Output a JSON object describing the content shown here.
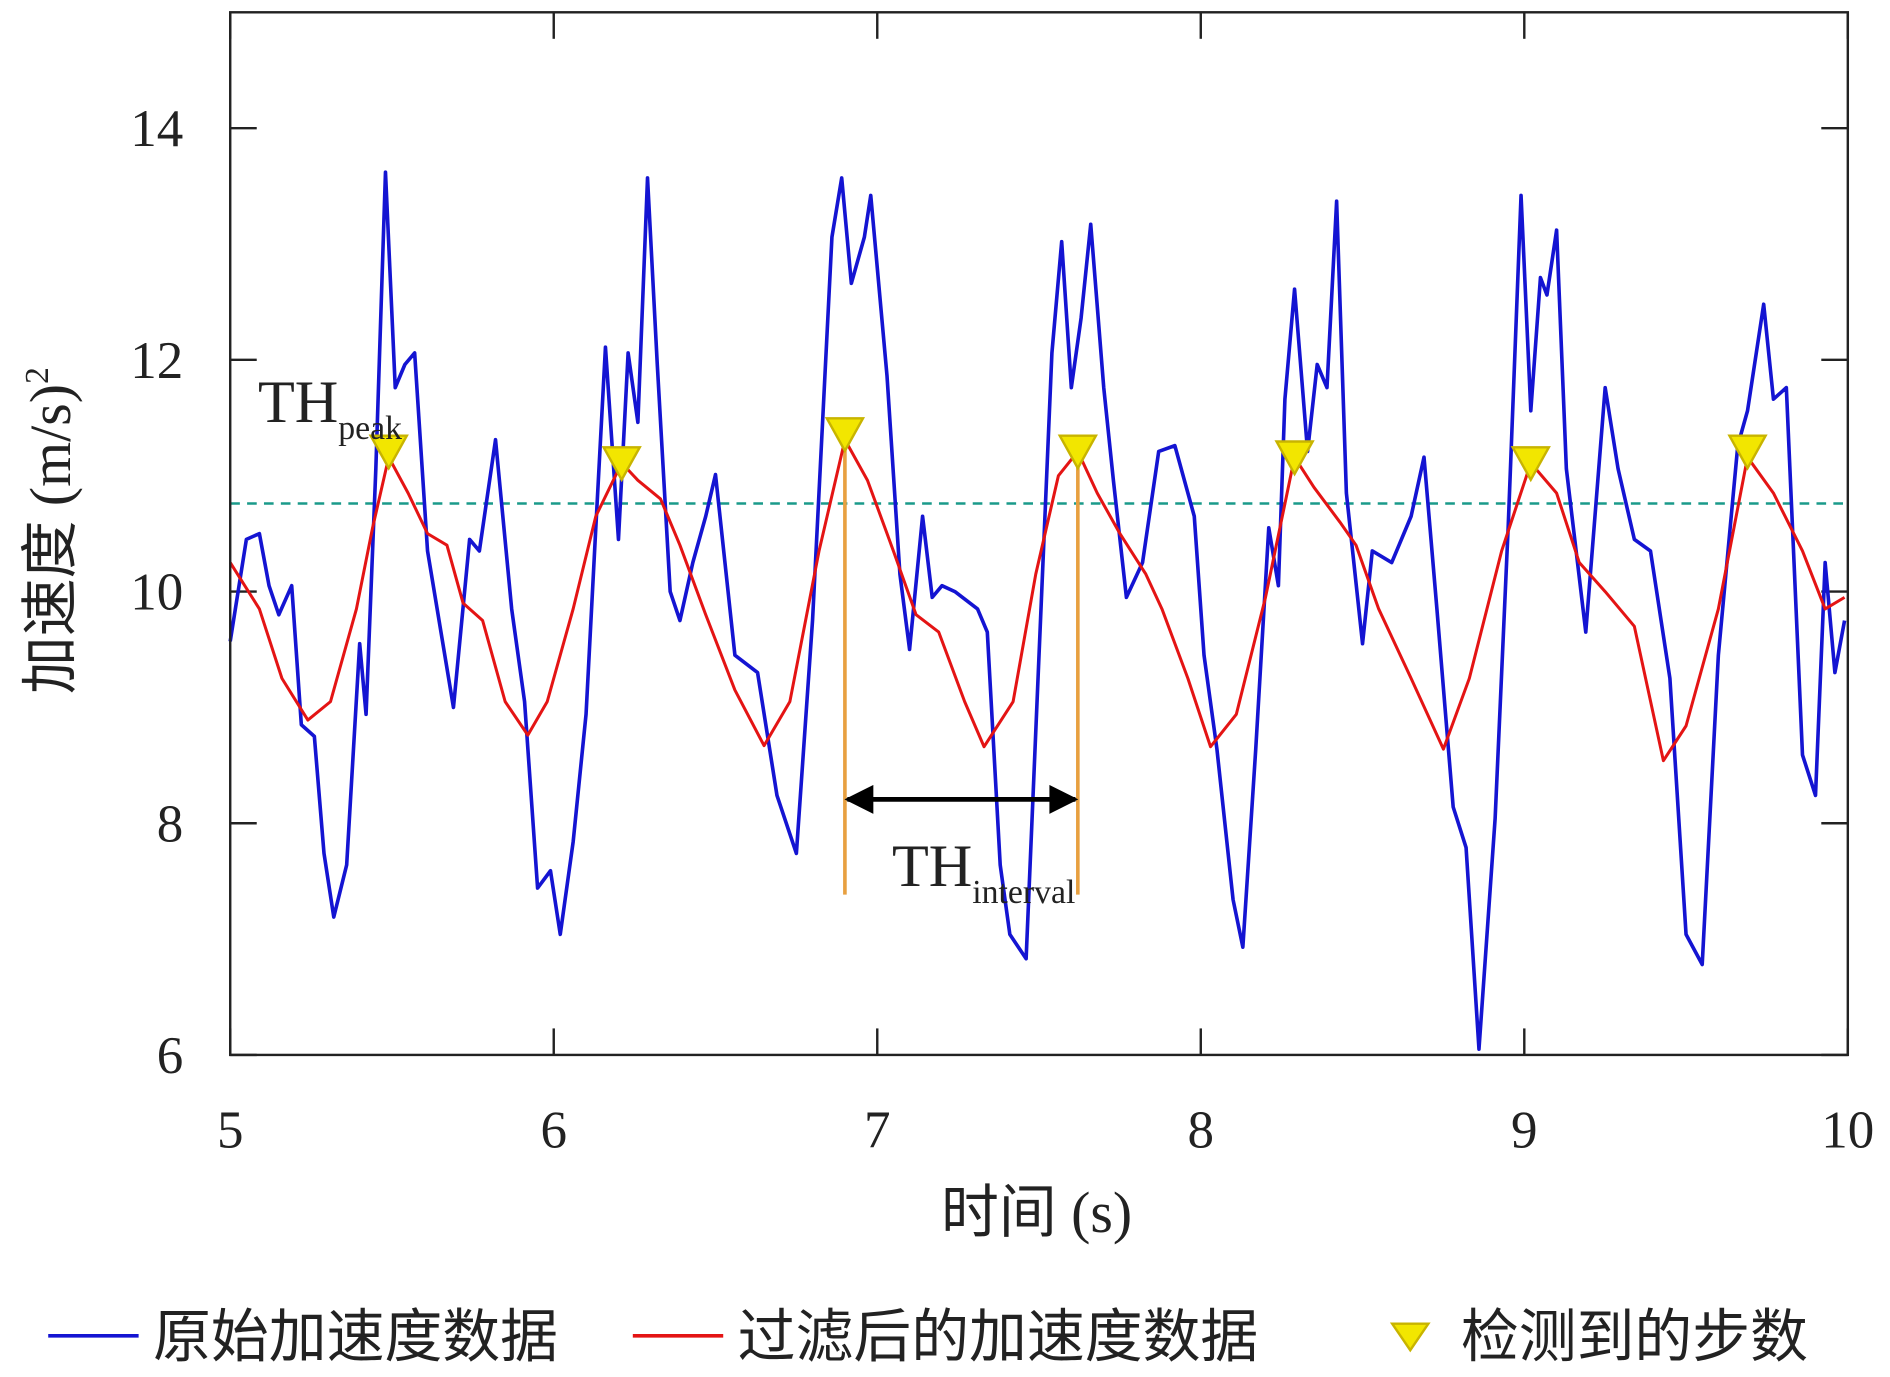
{
  "chart_data": {
    "type": "line",
    "xlabel": "时间 (s)",
    "ylabel": "加速度 (m/s)",
    "ylabel_sup": "2",
    "xlim": [
      5,
      10
    ],
    "xticks": [
      5,
      6,
      7,
      8,
      9,
      10
    ],
    "ylim": [
      6,
      15
    ],
    "yticks": [
      6,
      8,
      10,
      12,
      14
    ],
    "threshold": 10.76,
    "annotations": [
      {
        "text": "TH",
        "sub": "peak"
      },
      {
        "text": "TH",
        "sub": "interval"
      }
    ],
    "series": [
      {
        "name": "原始加速度数据",
        "color": "#1414d2",
        "kind": "line",
        "x": [
          5.0,
          5.05,
          5.09,
          5.12,
          5.15,
          5.19,
          5.22,
          5.26,
          5.29,
          5.32,
          5.36,
          5.4,
          5.42,
          5.45,
          5.48,
          5.51,
          5.54,
          5.57,
          5.61,
          5.69,
          5.74,
          5.77,
          5.82,
          5.87,
          5.91,
          5.95,
          5.99,
          6.02,
          6.06,
          6.1,
          6.13,
          6.16,
          6.2,
          6.23,
          6.26,
          6.29,
          6.32,
          6.36,
          6.39,
          6.43,
          6.47,
          6.5,
          6.56,
          6.63,
          6.69,
          6.75,
          6.8,
          6.86,
          6.89,
          6.92,
          6.96,
          6.98,
          7.03,
          7.07,
          7.1,
          7.14,
          7.17,
          7.2,
          7.24,
          7.31,
          7.34,
          7.38,
          7.41,
          7.46,
          7.5,
          7.54,
          7.57,
          7.6,
          7.63,
          7.66,
          7.7,
          7.73,
          7.77,
          7.82,
          7.87,
          7.92,
          7.98,
          8.01,
          8.05,
          8.1,
          8.13,
          8.17,
          8.21,
          8.24,
          8.26,
          8.29,
          8.33,
          8.36,
          8.39,
          8.42,
          8.45,
          8.5,
          8.53,
          8.59,
          8.65,
          8.69,
          8.73,
          8.78,
          8.82,
          8.86,
          8.91,
          8.95,
          8.99,
          9.02,
          9.05,
          9.07,
          9.1,
          9.13,
          9.19,
          9.25,
          9.29,
          9.34,
          9.39,
          9.45,
          9.5,
          9.55,
          9.6,
          9.66,
          9.69,
          9.74,
          9.77,
          9.81,
          9.86,
          9.9,
          9.93,
          9.96,
          9.99
        ],
        "values": [
          9.57,
          10.45,
          10.5,
          10.05,
          9.8,
          10.05,
          8.85,
          8.75,
          7.74,
          7.19,
          7.64,
          9.55,
          8.94,
          11.06,
          13.62,
          11.76,
          11.96,
          12.06,
          10.35,
          9.0,
          10.45,
          10.35,
          11.31,
          9.85,
          9.05,
          7.44,
          7.59,
          7.04,
          7.84,
          8.94,
          10.55,
          12.11,
          10.45,
          12.06,
          11.46,
          13.57,
          11.96,
          10.0,
          9.75,
          10.25,
          10.65,
          11.01,
          9.45,
          9.3,
          8.24,
          7.74,
          9.75,
          13.06,
          13.57,
          12.66,
          13.06,
          13.42,
          11.86,
          10.15,
          9.5,
          10.65,
          9.95,
          10.05,
          10.0,
          9.85,
          9.65,
          7.64,
          7.04,
          6.83,
          9.45,
          12.06,
          13.02,
          11.76,
          12.36,
          13.17,
          11.76,
          10.96,
          9.95,
          10.25,
          11.21,
          11.26,
          10.65,
          9.45,
          8.64,
          7.34,
          6.93,
          8.64,
          10.55,
          10.05,
          11.66,
          12.61,
          11.21,
          11.96,
          11.76,
          13.37,
          10.85,
          9.55,
          10.35,
          10.25,
          10.65,
          11.16,
          9.85,
          8.14,
          7.79,
          6.05,
          8.04,
          10.55,
          13.42,
          11.56,
          12.71,
          12.56,
          13.12,
          11.06,
          9.65,
          11.76,
          11.06,
          10.45,
          10.35,
          9.25,
          7.04,
          6.78,
          9.45,
          11.26,
          11.56,
          12.48,
          11.66,
          11.76,
          8.59,
          8.24,
          10.25,
          9.3,
          9.75
        ]
      },
      {
        "name": "过滤后的加速度数据",
        "color": "#e41414",
        "kind": "line",
        "x": [
          5.0,
          5.09,
          5.16,
          5.24,
          5.31,
          5.39,
          5.44,
          5.49,
          5.55,
          5.61,
          5.67,
          5.72,
          5.78,
          5.85,
          5.92,
          5.98,
          6.06,
          6.13,
          6.21,
          6.26,
          6.33,
          6.39,
          6.47,
          6.56,
          6.65,
          6.73,
          6.82,
          6.9,
          6.97,
          7.05,
          7.12,
          7.19,
          7.27,
          7.33,
          7.42,
          7.49,
          7.56,
          7.62,
          7.68,
          7.75,
          7.83,
          7.88,
          7.96,
          8.03,
          8.11,
          8.2,
          8.29,
          8.35,
          8.43,
          8.48,
          8.55,
          8.65,
          8.75,
          8.83,
          8.93,
          9.02,
          9.1,
          9.17,
          9.25,
          9.34,
          9.43,
          9.5,
          9.6,
          9.69,
          9.77,
          9.86,
          9.93,
          9.99
        ],
        "values": [
          10.25,
          9.85,
          9.25,
          8.89,
          9.05,
          9.85,
          10.55,
          11.16,
          10.85,
          10.5,
          10.4,
          9.9,
          9.75,
          9.05,
          8.76,
          9.05,
          9.85,
          10.65,
          11.11,
          10.96,
          10.8,
          10.4,
          9.8,
          9.15,
          8.67,
          9.05,
          10.35,
          11.31,
          10.96,
          10.35,
          9.8,
          9.65,
          9.05,
          8.66,
          9.05,
          10.15,
          11.0,
          11.21,
          10.85,
          10.5,
          10.15,
          9.85,
          9.25,
          8.66,
          8.94,
          9.95,
          11.16,
          10.9,
          10.6,
          10.4,
          9.85,
          9.25,
          8.64,
          9.25,
          10.35,
          11.11,
          10.85,
          10.25,
          10.0,
          9.7,
          8.54,
          8.84,
          9.85,
          11.16,
          10.85,
          10.35,
          9.85,
          9.95
        ]
      },
      {
        "name": "检测到的步数",
        "color": "#f2e600",
        "kind": "marker",
        "x": [
          5.49,
          6.21,
          6.9,
          7.62,
          8.29,
          9.02,
          9.69
        ],
        "values": [
          11.21,
          11.11,
          11.36,
          11.21,
          11.16,
          11.11,
          11.21
        ]
      }
    ]
  }
}
